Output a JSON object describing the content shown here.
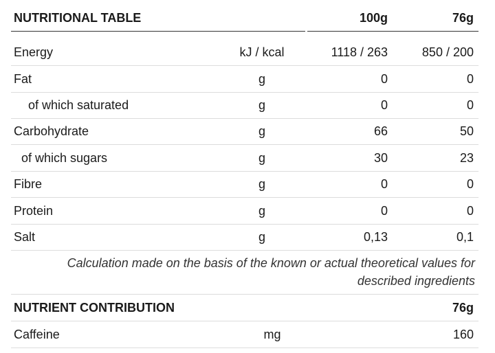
{
  "header": {
    "title": "NUTRITIONAL TABLE",
    "col_100g": "100g",
    "col_76g": "76g"
  },
  "rows": [
    {
      "name": "Energy",
      "unit": "kJ / kcal",
      "per100": "1118 / 263",
      "per76": "850 / 200"
    },
    {
      "name": "Fat",
      "unit": "g",
      "per100": "0",
      "per76": "0"
    },
    {
      "name": "of which saturated",
      "unit": "g",
      "per100": "0",
      "per76": "0"
    },
    {
      "name": "Carbohydrate",
      "unit": "g",
      "per100": "66",
      "per76": "50"
    },
    {
      "name": "of which sugars",
      "unit": "g",
      "per100": "30",
      "per76": "23"
    },
    {
      "name": "Fibre",
      "unit": "g",
      "per100": "0",
      "per76": "0"
    },
    {
      "name": "Protein",
      "unit": "g",
      "per100": "0",
      "per76": "0"
    },
    {
      "name": "Salt",
      "unit": "g",
      "per100": "0,13",
      "per76": "0,1"
    }
  ],
  "note": {
    "line1": "Calculation made on the basis of the known or actual theoretical values for",
    "line2": "described ingredients"
  },
  "contribution": {
    "title": "NUTRIENT CONTRIBUTION",
    "col_76g": "76g",
    "rows": [
      {
        "name": "Caffeine",
        "unit": "mg",
        "per76": "160"
      }
    ]
  }
}
